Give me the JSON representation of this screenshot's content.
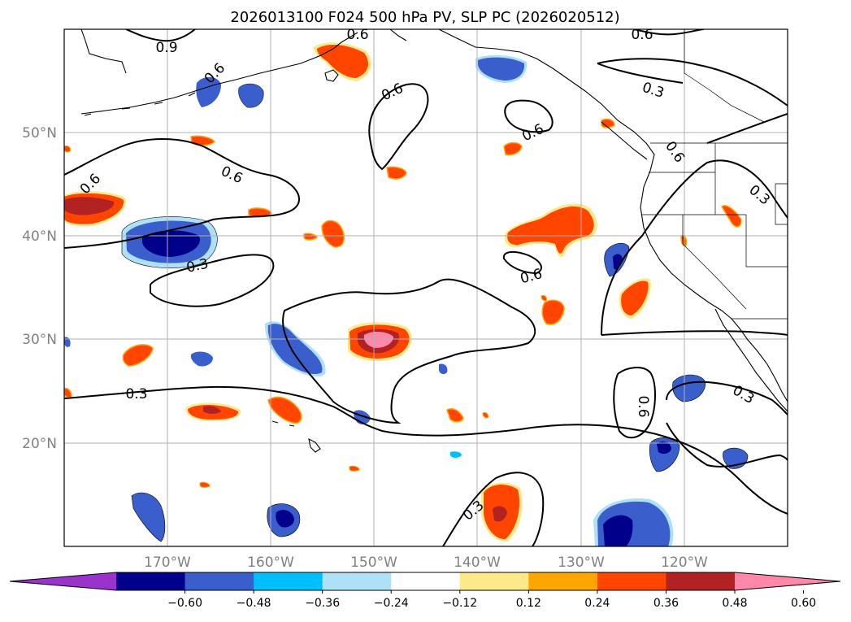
{
  "title": "2026013100 F024 500 hPa PV, SLP PC (2026020512)",
  "map": {
    "lat_labels": [
      "50°N",
      "40°N",
      "30°N",
      "20°N"
    ],
    "lon_labels": [
      "170°W",
      "160°W",
      "150°W",
      "140°W",
      "130°W",
      "120°W"
    ],
    "contour_labels": [
      "0.9",
      "0.6",
      "0.6",
      "0.6",
      "0.6",
      "0.6",
      "0.6",
      "0.6",
      "0.6",
      "0.3",
      "0.3",
      "0.3",
      "0.3",
      "0.3",
      "0.3",
      "0.6",
      "0.6"
    ]
  },
  "colorbar": {
    "colors": [
      "#9933cc",
      "#00008b",
      "#3a5fcd",
      "#00bfff",
      "#aee0f8",
      "#ffffff",
      "#fde88a",
      "#ffa500",
      "#ff4500",
      "#b22222",
      "#ff88aa"
    ],
    "tick_labels": [
      "−0.60",
      "−0.48",
      "−0.36",
      "−0.24",
      "−0.12",
      "0.12",
      "0.24",
      "0.36",
      "0.48",
      "0.60"
    ]
  },
  "chart_data": {
    "type": "map-contour",
    "title": "2026013100 F024 500 hPa PV, SLP PC (2026020512)",
    "lat_range": [
      10,
      60
    ],
    "lon_range": [
      -180,
      -110
    ],
    "fill_levels": [
      -0.6,
      -0.48,
      -0.36,
      -0.24,
      -0.12,
      0.12,
      0.24,
      0.36,
      0.48,
      0.6
    ],
    "contour_values": [
      0.3,
      0.6,
      0.9
    ]
  }
}
